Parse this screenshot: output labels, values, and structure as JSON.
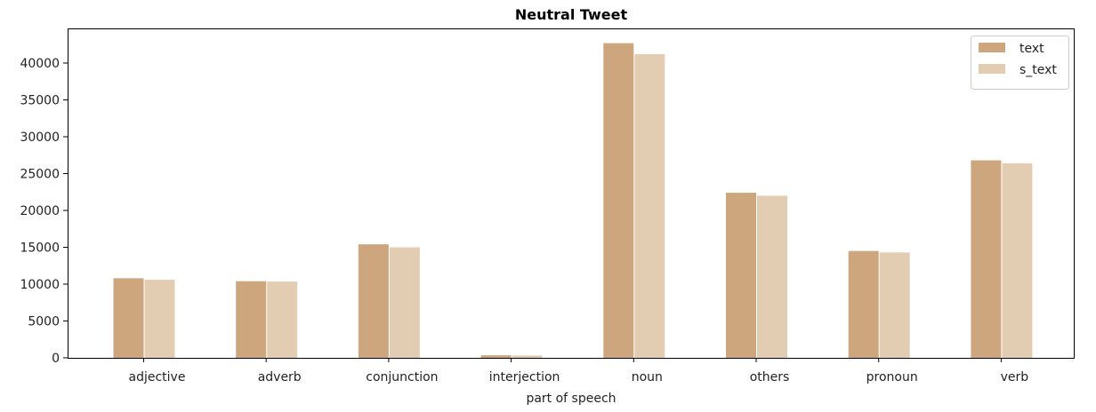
{
  "chart_data": {
    "type": "bar",
    "title": "Neutral Tweet",
    "xlabel": "part of speech",
    "ylabel": "",
    "categories": [
      "adjective",
      "adverb",
      "conjunction",
      "interjection",
      "noun",
      "others",
      "pronoun",
      "verb"
    ],
    "series": [
      {
        "name": "text",
        "color": "#cda67d",
        "values": [
          10800,
          10400,
          15400,
          350,
          42700,
          22400,
          14500,
          26800
        ]
      },
      {
        "name": "s_text",
        "color": "#e3cdb2",
        "values": [
          10600,
          10350,
          15000,
          320,
          41200,
          22000,
          14300,
          26400
        ]
      }
    ],
    "ylim": [
      0,
      44700
    ],
    "yticks": [
      0,
      5000,
      10000,
      15000,
      20000,
      25000,
      30000,
      35000,
      40000
    ],
    "grid": false,
    "legend_position": "top-right"
  }
}
